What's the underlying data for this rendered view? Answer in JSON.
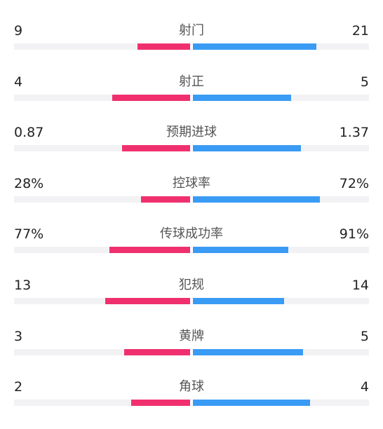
{
  "colors": {
    "home": "#f0306e",
    "away": "#3a9bf4",
    "track": "#f2f2f4"
  },
  "stats": [
    {
      "label": "射门",
      "home": "9",
      "away": "21",
      "home_share": 0.3,
      "away_share": 0.7
    },
    {
      "label": "射正",
      "home": "4",
      "away": "5",
      "home_share": 0.444,
      "away_share": 0.556
    },
    {
      "label": "预期进球",
      "home": "0.87",
      "away": "1.37",
      "home_share": 0.388,
      "away_share": 0.612
    },
    {
      "label": "控球率",
      "home": "28%",
      "away": "72%",
      "home_share": 0.28,
      "away_share": 0.72
    },
    {
      "label": "传球成功率",
      "home": "77%",
      "away": "91%",
      "home_share": 0.458,
      "away_share": 0.542
    },
    {
      "label": "犯规",
      "home": "13",
      "away": "14",
      "home_share": 0.481,
      "away_share": 0.519
    },
    {
      "label": "黄牌",
      "home": "3",
      "away": "5",
      "home_share": 0.375,
      "away_share": 0.625
    },
    {
      "label": "角球",
      "home": "2",
      "away": "4",
      "home_share": 0.333,
      "away_share": 0.667
    }
  ]
}
